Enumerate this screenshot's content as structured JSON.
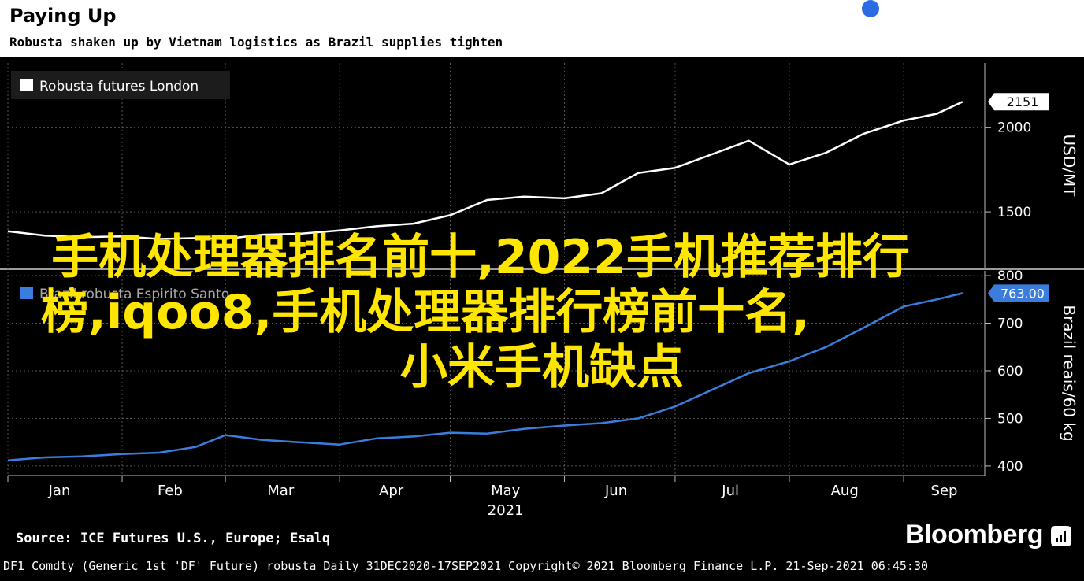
{
  "header": {
    "title": "Paying Up",
    "subtitle": "Robusta shaken up by Vietnam logistics as Brazil supplies tighten"
  },
  "footer": {
    "source": "Source: ICE Futures U.S., Europe; Esalq",
    "brand": "Bloomberg",
    "meta": "DF1 Comdty (Generic 1st 'DF' Future) robusta  Daily 31DEC2020-17SEP2021  Copyright© 2021 Bloomberg Finance L.P.  21-Sep-2021 06:45:30"
  },
  "overlay": {
    "line1": "手机处理器排名前十,2022手机推荐排行",
    "line2": "榜,iqoo8,手机处理器排行榜前十名,",
    "line3": "小米手机缺点"
  },
  "colors": {
    "background": "#000000",
    "series_top": "#ffffff",
    "series_bottom": "#3b7ddd",
    "overlay_text": "#ffe600",
    "dot": "#2a6de3"
  },
  "chart_data": [
    {
      "type": "line",
      "legend": [
        "Robusta futures London"
      ],
      "ylabel": "USD/MT",
      "yticks": [
        1500,
        2000
      ],
      "ylim": [
        1170,
        2380
      ],
      "last_value_label": "2151",
      "series": [
        {
          "name": "Robusta futures London",
          "x": [
            "2021-01-01",
            "2021-01-11",
            "2021-01-21",
            "2021-02-01",
            "2021-02-11",
            "2021-02-21",
            "2021-03-01",
            "2021-03-11",
            "2021-03-21",
            "2021-04-01",
            "2021-04-11",
            "2021-04-21",
            "2021-05-01",
            "2021-05-11",
            "2021-05-21",
            "2021-06-01",
            "2021-06-11",
            "2021-06-21",
            "2021-07-01",
            "2021-07-11",
            "2021-07-21",
            "2021-08-01",
            "2021-08-11",
            "2021-08-21",
            "2021-09-01",
            "2021-09-10",
            "2021-09-17"
          ],
          "y": [
            1385,
            1360,
            1350,
            1355,
            1340,
            1345,
            1340,
            1365,
            1370,
            1390,
            1415,
            1430,
            1480,
            1570,
            1590,
            1580,
            1610,
            1730,
            1760,
            1840,
            1920,
            1780,
            1850,
            1960,
            2040,
            2080,
            2151
          ]
        }
      ]
    },
    {
      "type": "line",
      "legend": [
        "Brazil robusta Espirito Santo"
      ],
      "ylabel": "Brazil reais/60 kg",
      "yticks": [
        400,
        500,
        600,
        700,
        800
      ],
      "ylim": [
        380,
        810
      ],
      "last_value_label": "763.00",
      "series": [
        {
          "name": "Brazil robusta Espirito Santo",
          "x": [
            "2021-01-01",
            "2021-01-11",
            "2021-01-21",
            "2021-02-01",
            "2021-02-11",
            "2021-02-21",
            "2021-03-01",
            "2021-03-11",
            "2021-03-21",
            "2021-04-01",
            "2021-04-11",
            "2021-04-21",
            "2021-05-01",
            "2021-05-11",
            "2021-05-21",
            "2021-06-01",
            "2021-06-11",
            "2021-06-21",
            "2021-07-01",
            "2021-07-11",
            "2021-07-21",
            "2021-08-01",
            "2021-08-11",
            "2021-08-21",
            "2021-09-01",
            "2021-09-10",
            "2021-09-17"
          ],
          "y": [
            412,
            418,
            420,
            425,
            428,
            440,
            465,
            455,
            450,
            445,
            458,
            462,
            470,
            468,
            478,
            485,
            490,
            500,
            525,
            560,
            595,
            620,
            650,
            690,
            735,
            750,
            763
          ]
        }
      ]
    }
  ],
  "xaxis": {
    "ticks": [
      "Jan",
      "Feb",
      "Mar",
      "Apr",
      "May",
      "Jun",
      "Jul",
      "Aug",
      "Sep"
    ],
    "year": "2021"
  }
}
